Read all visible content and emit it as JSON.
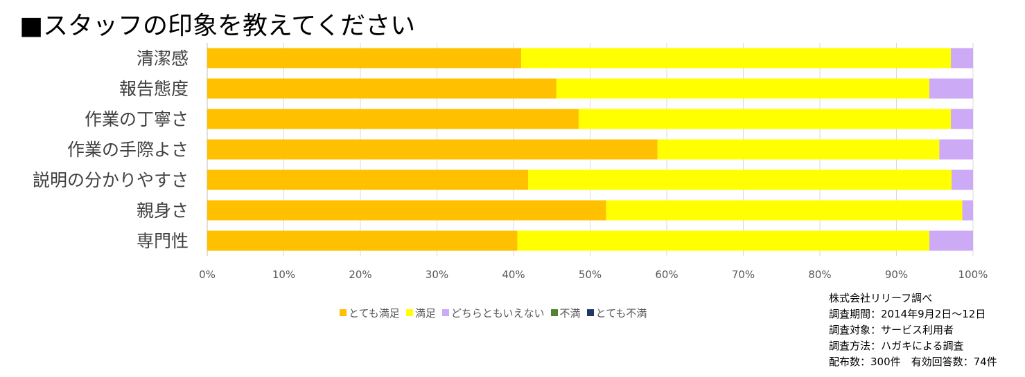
{
  "chart_data": {
    "type": "bar",
    "orientation": "horizontal",
    "stacked": "percent",
    "title": "■スタッフの印象を教えてください",
    "categories": [
      "清潔感",
      "報告態度",
      "作業の丁寧さ",
      "作業の手際よさ",
      "説明の分かりやすさ",
      "親身さ",
      "専門性"
    ],
    "series": [
      {
        "name": "とても満足",
        "color": "#FFC000",
        "values": [
          41,
          45.6,
          48.5,
          58.8,
          41.9,
          52.1,
          40.5
        ]
      },
      {
        "name": "満足",
        "color": "#FFFF00",
        "values": [
          56.1,
          48.7,
          48.6,
          36.8,
          55.3,
          46.5,
          53.8
        ]
      },
      {
        "name": "どちらともいえない",
        "color": "#CCAAF5",
        "values": [
          2.9,
          5.7,
          2.9,
          4.4,
          2.8,
          1.4,
          5.7
        ]
      },
      {
        "name": "不満",
        "color": "#548235",
        "values": [
          0,
          0,
          0,
          0,
          0,
          0,
          0
        ]
      },
      {
        "name": "とても不満",
        "color": "#203864",
        "values": [
          0,
          0,
          0,
          0,
          0,
          0,
          0
        ]
      }
    ],
    "xlim": [
      0,
      100
    ],
    "x_ticks": [
      "0%",
      "10%",
      "20%",
      "30%",
      "40%",
      "50%",
      "60%",
      "70%",
      "80%",
      "90%",
      "100%"
    ],
    "grid": "vertical",
    "legend_position": "bottom"
  },
  "notes": {
    "line1": "株式会社リリーフ調べ",
    "line2": "調査期間：2014年9月2日～12日",
    "line3": "調査対象：サービス利用者",
    "line4": "調査方法：ハガキによる調査",
    "line5": "配布数：300件　有効回答数：74件"
  }
}
